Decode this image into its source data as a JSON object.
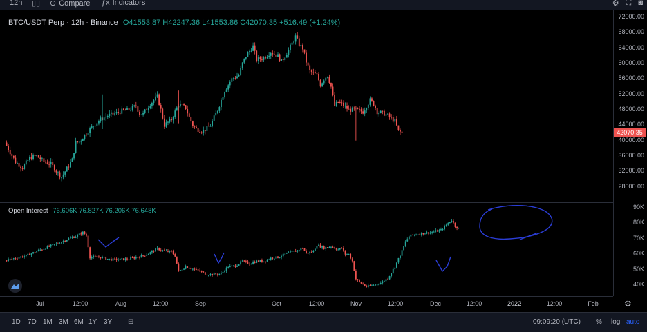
{
  "toolbar": {
    "interval": "12h",
    "compare": "Compare",
    "indicators": "Indicators"
  },
  "legend": {
    "title": "BTC/USDT Perp · 12h · Binance",
    "ohlc": "O41553.87 H42247.36 L41553.86 C42070.35 +516.49 (+1.24%)"
  },
  "oi_legend": {
    "title": "Open Interest",
    "values": "76.606K 76.827K 76.206K 76.648K"
  },
  "price_tag": "42070.35",
  "bottom": {
    "ranges": [
      "1D",
      "7D",
      "1M",
      "3M",
      "6M",
      "1Y",
      "3Y"
    ],
    "time": "09:09:20 (UTC)",
    "pct": "%",
    "log": "log",
    "auto": "auto"
  },
  "colors": {
    "up": "#26a69a",
    "down": "#ef5350",
    "annotation": "#2b3ed8",
    "price_tag": "#ef5350"
  },
  "chart_data": [
    {
      "type": "candlestick",
      "title": "BTC/USDT Perp · 12h · Binance",
      "ylim": [
        24000,
        74000
      ],
      "y_ticks": [
        "72000.00",
        "68000.00",
        "64000.00",
        "60000.00",
        "56000.00",
        "52000.00",
        "48000.00",
        "44000.00",
        "40000.00",
        "36000.00",
        "32000.00",
        "28000.00"
      ],
      "x_ticks": [
        "Jul",
        "12:00",
        "Aug",
        "12:00",
        "Sep",
        "Oct",
        "12:00",
        "Nov",
        "12:00",
        "Dec",
        "12:00",
        "2022",
        "12:00",
        "Feb"
      ],
      "path": [
        [
          0,
          39500
        ],
        [
          3,
          34500
        ],
        [
          5,
          33000
        ],
        [
          7,
          35500
        ],
        [
          9,
          36000
        ],
        [
          11,
          34500
        ],
        [
          13,
          34000
        ],
        [
          15,
          31500
        ],
        [
          16,
          30500
        ],
        [
          17,
          32000
        ],
        [
          19,
          35000
        ],
        [
          20,
          39500
        ],
        [
          21,
          39700
        ],
        [
          23,
          42000
        ],
        [
          25,
          44000
        ],
        [
          27,
          45500
        ],
        [
          29,
          46500
        ],
        [
          31,
          47000
        ],
        [
          33,
          47700
        ],
        [
          35,
          48000
        ],
        [
          37,
          49000
        ],
        [
          38,
          47000
        ],
        [
          39,
          47000
        ],
        [
          41,
          49500
        ],
        [
          43,
          51500
        ],
        [
          44,
          48000
        ],
        [
          45,
          44000
        ],
        [
          47,
          45500
        ],
        [
          49,
          49500
        ],
        [
          51,
          48500
        ],
        [
          52,
          46000
        ],
        [
          53,
          44000
        ],
        [
          54,
          43000
        ],
        [
          56,
          42500
        ],
        [
          58,
          44000
        ],
        [
          60,
          48000
        ],
        [
          62,
          53000
        ],
        [
          64,
          56000
        ],
        [
          66,
          57000
        ],
        [
          67,
          60000
        ],
        [
          68,
          62000
        ],
        [
          70,
          64500
        ],
        [
          71,
          61000
        ],
        [
          73,
          61500
        ],
        [
          75,
          63000
        ],
        [
          77,
          62000
        ],
        [
          78,
          60500
        ],
        [
          80,
          63500
        ],
        [
          82,
          67000
        ],
        [
          83,
          65000
        ],
        [
          84,
          64000
        ],
        [
          85,
          60500
        ],
        [
          86,
          58000
        ],
        [
          88,
          57000
        ],
        [
          89,
          54500
        ],
        [
          90,
          56000
        ],
        [
          91,
          57000
        ],
        [
          92,
          54000
        ],
        [
          93,
          49000
        ],
        [
          94,
          50000
        ],
        [
          95,
          49500
        ],
        [
          97,
          48000
        ],
        [
          99,
          48000
        ],
        [
          101,
          47500
        ],
        [
          103,
          50500
        ],
        [
          104,
          49500
        ],
        [
          105,
          47500
        ],
        [
          107,
          47000
        ],
        [
          108,
          46500
        ],
        [
          110,
          45000
        ],
        [
          111,
          42500
        ],
        [
          112,
          42000
        ]
      ],
      "date_note": "index 0 ~ late Jun 2021; Jul at 6, Aug 25, Sep 43, Oct 62, Nov 80, Dec 99, 2022 at 118, Feb 137 (12h candles)"
    },
    {
      "type": "candlestick",
      "title": "Open Interest",
      "ylim": [
        33000,
        93000
      ],
      "y_ticks": [
        "90K",
        "80K",
        "70K",
        "60K",
        "50K",
        "40K"
      ],
      "path": [
        [
          0,
          56000
        ],
        [
          3,
          57500
        ],
        [
          6,
          59000
        ],
        [
          9,
          62000
        ],
        [
          12,
          64500
        ],
        [
          15,
          67000
        ],
        [
          18,
          70000
        ],
        [
          20,
          71500
        ],
        [
          22,
          74000
        ],
        [
          23,
          72000
        ],
        [
          24,
          58000
        ],
        [
          26,
          58500
        ],
        [
          28,
          57500
        ],
        [
          30,
          56500
        ],
        [
          32,
          56500
        ],
        [
          35,
          57000
        ],
        [
          37,
          58000
        ],
        [
          39,
          59000
        ],
        [
          41,
          61000
        ],
        [
          43,
          63500
        ],
        [
          45,
          62000
        ],
        [
          47,
          61500
        ],
        [
          48,
          59000
        ],
        [
          49,
          49000
        ],
        [
          51,
          52000
        ],
        [
          53,
          50500
        ],
        [
          55,
          49000
        ],
        [
          57,
          47000
        ],
        [
          59,
          47000
        ],
        [
          61,
          47500
        ],
        [
          63,
          52000
        ],
        [
          65,
          52500
        ],
        [
          67,
          55500
        ],
        [
          69,
          54000
        ],
        [
          71,
          55500
        ],
        [
          73,
          55500
        ],
        [
          75,
          57500
        ],
        [
          77,
          58000
        ],
        [
          79,
          60000
        ],
        [
          81,
          61500
        ],
        [
          82,
          62000
        ],
        [
          84,
          64000
        ],
        [
          85,
          60500
        ],
        [
          87,
          62000
        ],
        [
          88,
          66000
        ],
        [
          90,
          64000
        ],
        [
          92,
          65000
        ],
        [
          94,
          63000
        ],
        [
          95,
          64000
        ],
        [
          96,
          60000
        ],
        [
          97,
          60000
        ],
        [
          98,
          55500
        ],
        [
          99,
          44000
        ],
        [
          100,
          42000
        ],
        [
          101,
          40500
        ],
        [
          102,
          39000
        ],
        [
          104,
          40000
        ],
        [
          106,
          41500
        ],
        [
          108,
          44500
        ],
        [
          110,
          52000
        ],
        [
          112,
          62000
        ],
        [
          113,
          68000
        ],
        [
          114,
          71500
        ],
        [
          116,
          73000
        ],
        [
          118,
          73500
        ],
        [
          120,
          74000
        ],
        [
          121,
          74500
        ],
        [
          122,
          75000
        ],
        [
          123,
          75500
        ],
        [
          125,
          80000
        ],
        [
          126,
          82000
        ],
        [
          127,
          78000
        ],
        [
          128,
          76600
        ]
      ]
    }
  ]
}
